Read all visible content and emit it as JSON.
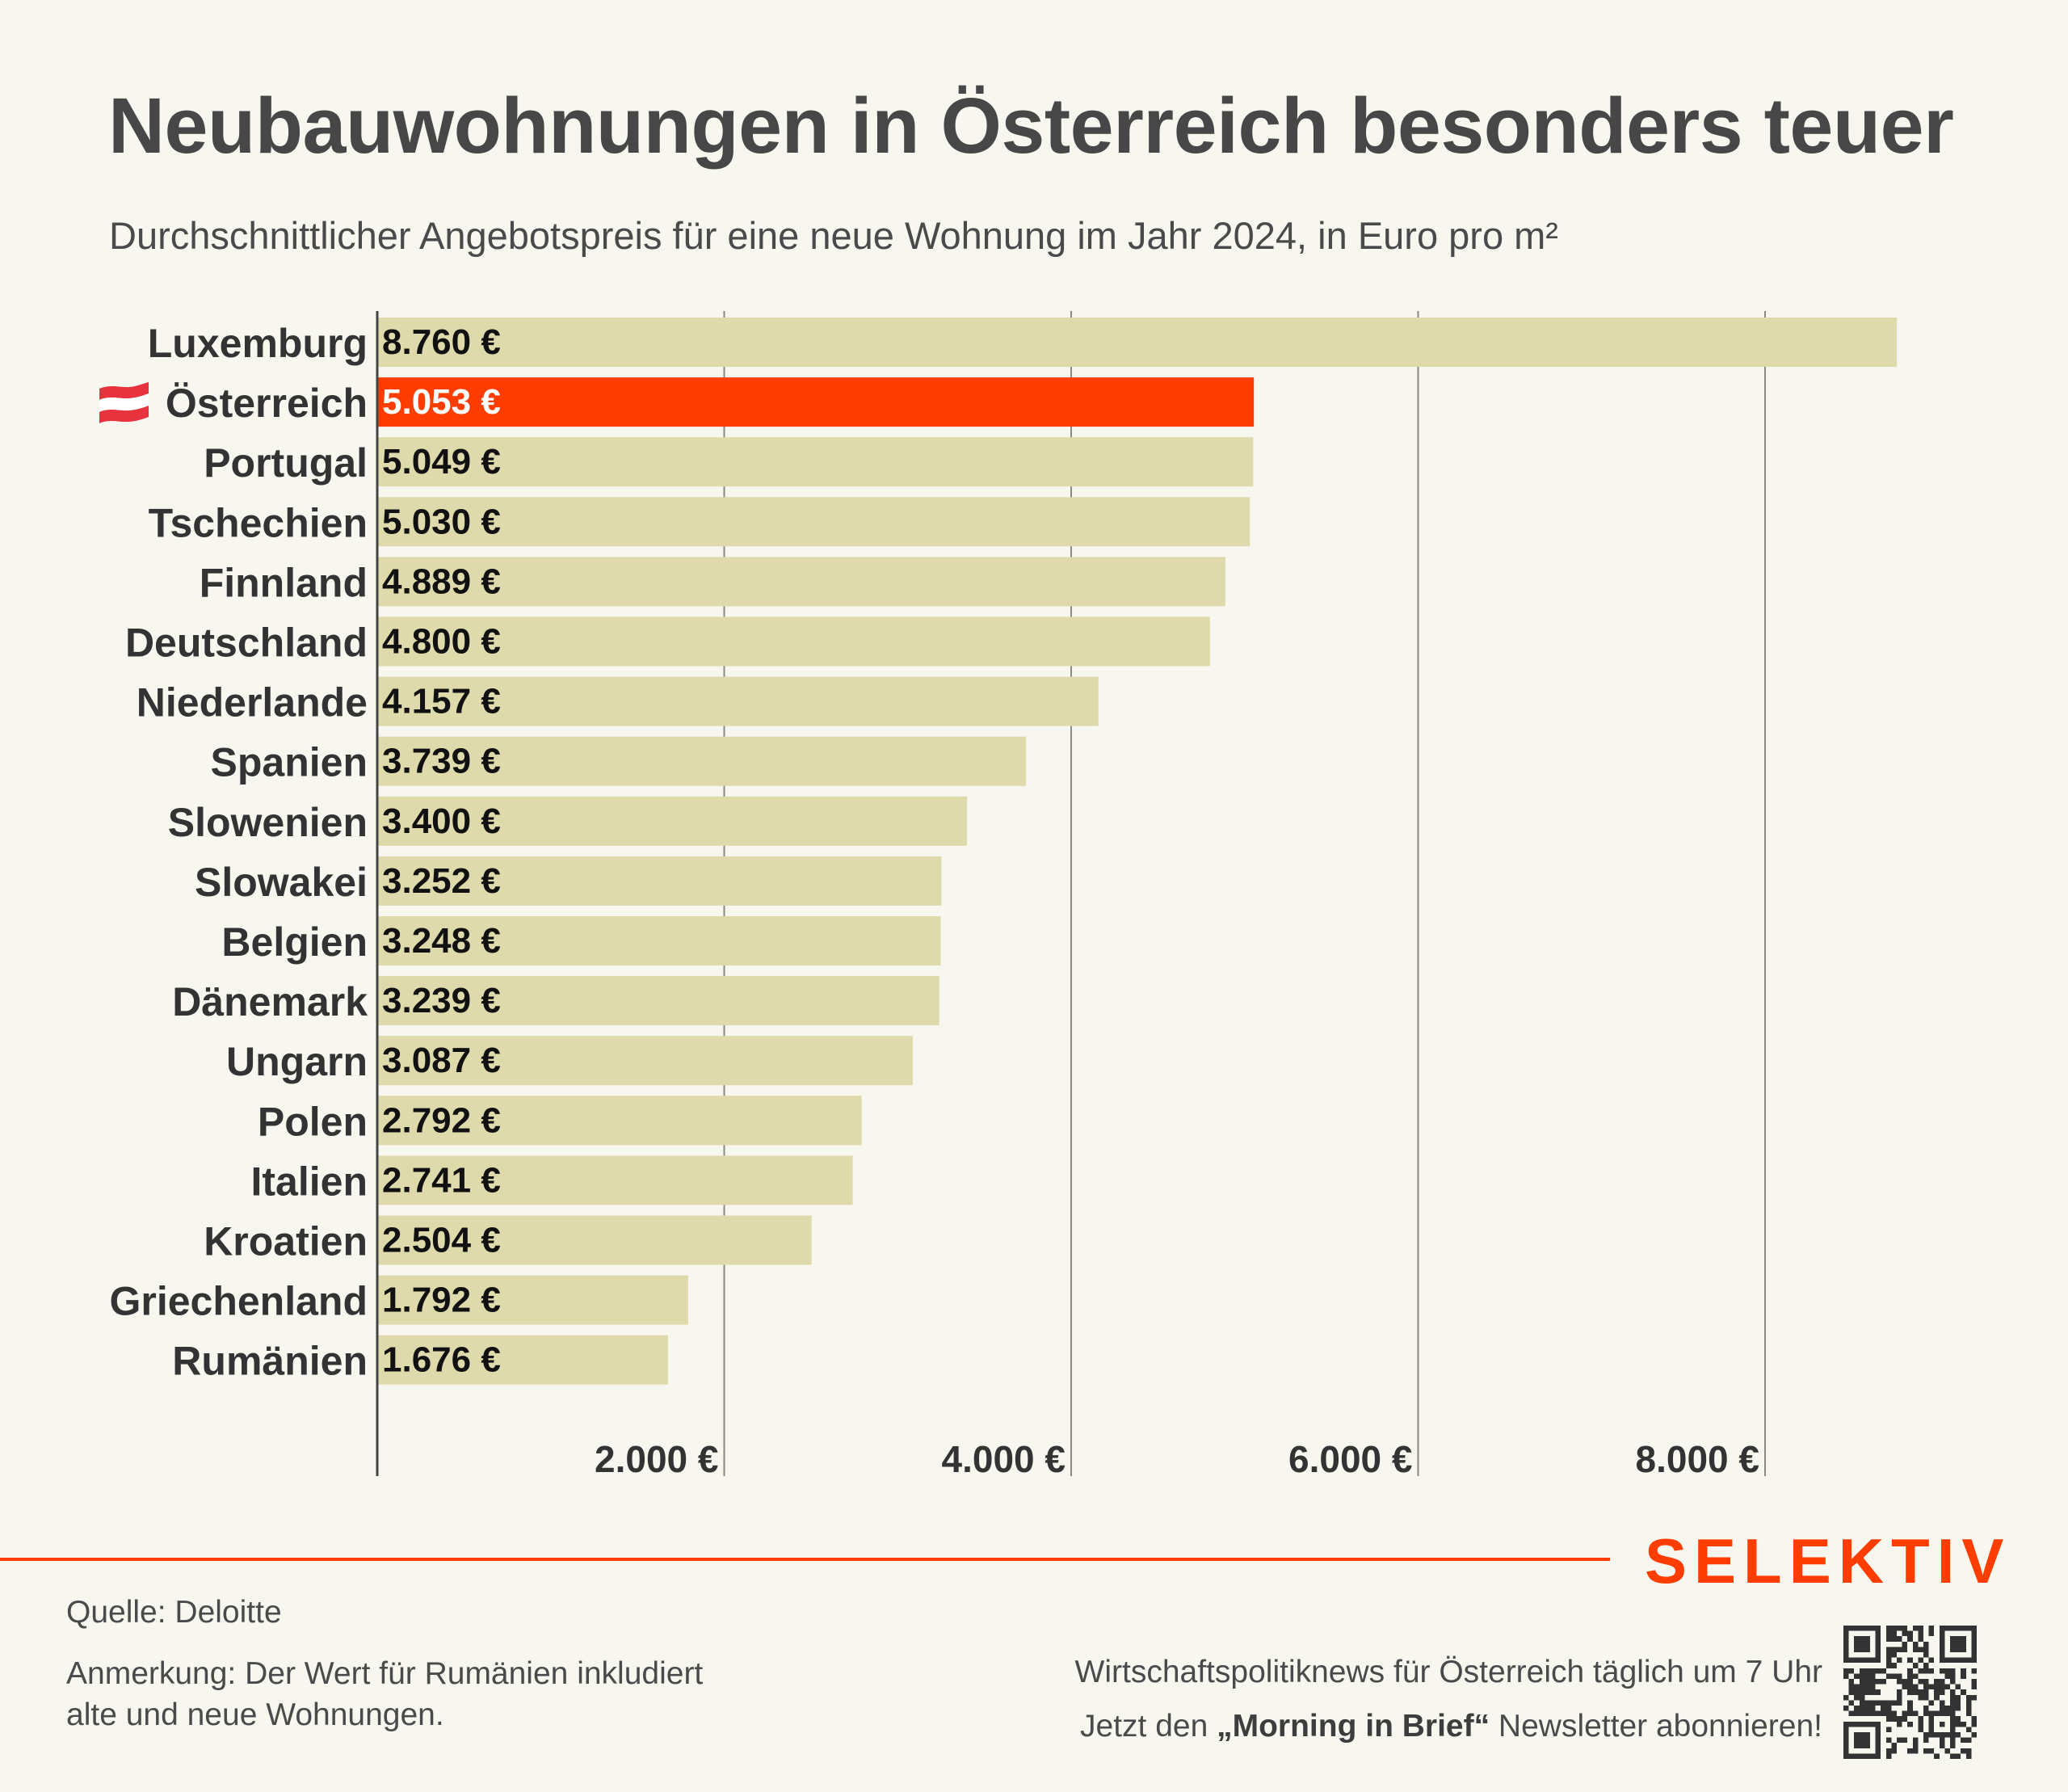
{
  "header": {
    "title": "Neubauwohnungen in Österreich besonders teuer",
    "subtitle": "Durchschnittlicher Angebotspreis für eine neue Wohnung im Jahr 2024, in Euro pro m²"
  },
  "chart_data": {
    "type": "bar",
    "orientation": "horizontal",
    "title": "Neubauwohnungen in Österreich besonders teuer",
    "subtitle": "Durchschnittlicher Angebotspreis für eine neue Wohnung im Jahr 2024, in Euro pro m²",
    "xlabel": "",
    "ylabel": "",
    "xlim": [
      0,
      9000
    ],
    "grid": true,
    "unit": "€",
    "x_ticks": [
      {
        "value": 2000,
        "label": "2.000 €"
      },
      {
        "value": 4000,
        "label": "4.000 €"
      },
      {
        "value": 6000,
        "label": "6.000 €"
      },
      {
        "value": 8000,
        "label": "8.000 €"
      }
    ],
    "categories": [
      "Luxemburg",
      "Österreich",
      "Portugal",
      "Tschechien",
      "Finnland",
      "Deutschland",
      "Niederlande",
      "Spanien",
      "Slowenien",
      "Slowakei",
      "Belgien",
      "Dänemark",
      "Ungarn",
      "Polen",
      "Italien",
      "Kroatien",
      "Griechenland",
      "Rumänien"
    ],
    "values": [
      8760,
      5053,
      5049,
      5030,
      4889,
      4800,
      4157,
      3739,
      3400,
      3252,
      3248,
      3239,
      3087,
      2792,
      2741,
      2504,
      1792,
      1676
    ],
    "value_labels": [
      "8.760 €",
      "5.053 €",
      "5.049 €",
      "5.030 €",
      "4.889 €",
      "4.800 €",
      "4.157 €",
      "3.739 €",
      "3.400 €",
      "3.252 €",
      "3.248 €",
      "3.239 €",
      "3.087 €",
      "2.792 €",
      "2.741 €",
      "2.504 €",
      "1.792 €",
      "1.676 €"
    ],
    "highlight": {
      "category": "Österreich",
      "icon": "austria-flag-icon"
    },
    "colors": {
      "bar": "#DEDAAB",
      "highlight_bar": "#FF3D00",
      "value_text": "#111111",
      "highlight_value_text": "#FFFFFF",
      "gridline": "#8A8A82",
      "axis": "#444444",
      "label_text": "#333333"
    }
  },
  "footer": {
    "source": "Quelle: Deloitte",
    "note_line1": "Anmerkung: Der Wert für Rumänien inkludiert",
    "note_line2": "alte und neue Wohnungen.",
    "promo_line1": "Wirtschaftspolitiknews für Österreich täglich um 7 Uhr",
    "promo_line2_prefix": "Jetzt den ",
    "promo_line2_bold": "„Morning in Brief“",
    "promo_line2_suffix": " Newsletter abonnieren!",
    "brand": "SELEKTIV",
    "qr_icon": "qr-code-icon"
  },
  "colors": {
    "background": "#F8F7EF",
    "accent": "#FF3D00",
    "text": "#474747"
  }
}
